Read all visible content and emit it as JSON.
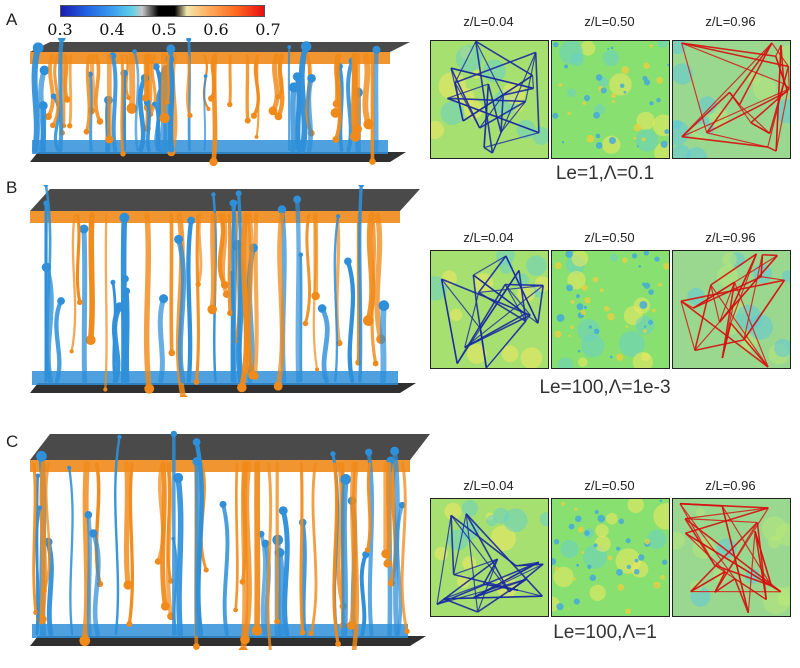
{
  "colorbar": {
    "ticks": [
      "0.3",
      "0.4",
      "0.5",
      "0.6",
      "0.7"
    ],
    "colors": [
      "#1a1ab0",
      "#3a9cf0",
      "#000000",
      "#ffb060",
      "#e81010"
    ]
  },
  "panels": [
    {
      "letter": "A",
      "slice_labels": [
        "z/L=0.04",
        "z/L=0.50",
        "z/L=0.96"
      ],
      "caption": "Le=1,Λ=0.1"
    },
    {
      "letter": "B",
      "slice_labels": [
        "z/L=0.04",
        "z/L=0.50",
        "z/L=0.96"
      ],
      "caption": "Le=100,Λ=1e-3"
    },
    {
      "letter": "C",
      "slice_labels": [
        "z/L=0.04",
        "z/L=0.50",
        "z/L=0.96"
      ],
      "caption": "Le=100,Λ=1"
    }
  ],
  "palette": {
    "slice_background": "#7fdc6a",
    "cold_plume": "#2f8fd8",
    "hot_plume": "#f08a1a",
    "hot_edge": "#d81010",
    "cold_edge": "#1a2aa0"
  }
}
